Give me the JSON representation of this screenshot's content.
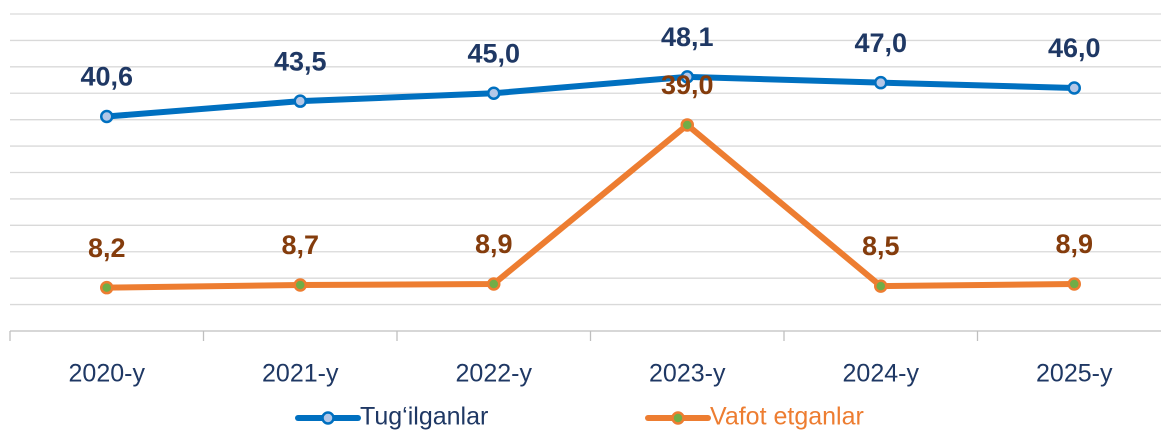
{
  "chart_data": {
    "type": "line",
    "categories": [
      "2020-y",
      "2021-y",
      "2022-y",
      "2023-y",
      "2024-y",
      "2025-y"
    ],
    "series": [
      {
        "name": "Tug‘ilganlar",
        "color": "#0070c0",
        "label_color": "#1f3864",
        "marker_fill": "#b4c7e7",
        "values": [
          40.6,
          43.5,
          45.0,
          48.1,
          47.0,
          46.0
        ],
        "value_labels": [
          "40,6",
          "43,5",
          "45,0",
          "48,1",
          "47,0",
          "46,0"
        ]
      },
      {
        "name": "Vafot etganlar",
        "color": "#ed7d31",
        "label_color": "#843c0c",
        "marker_fill": "#70ad47",
        "values": [
          8.2,
          8.7,
          8.9,
          39.0,
          8.5,
          8.9
        ],
        "value_labels": [
          "8,2",
          "8,7",
          "8,9",
          "39,0",
          "8,5",
          "8,9"
        ]
      }
    ],
    "ylim": [
      0,
      60
    ],
    "yticks": [
      0,
      5,
      10,
      15,
      20,
      25,
      30,
      35,
      40,
      45,
      50,
      55,
      60
    ],
    "grid": true,
    "legend": "bottom"
  }
}
